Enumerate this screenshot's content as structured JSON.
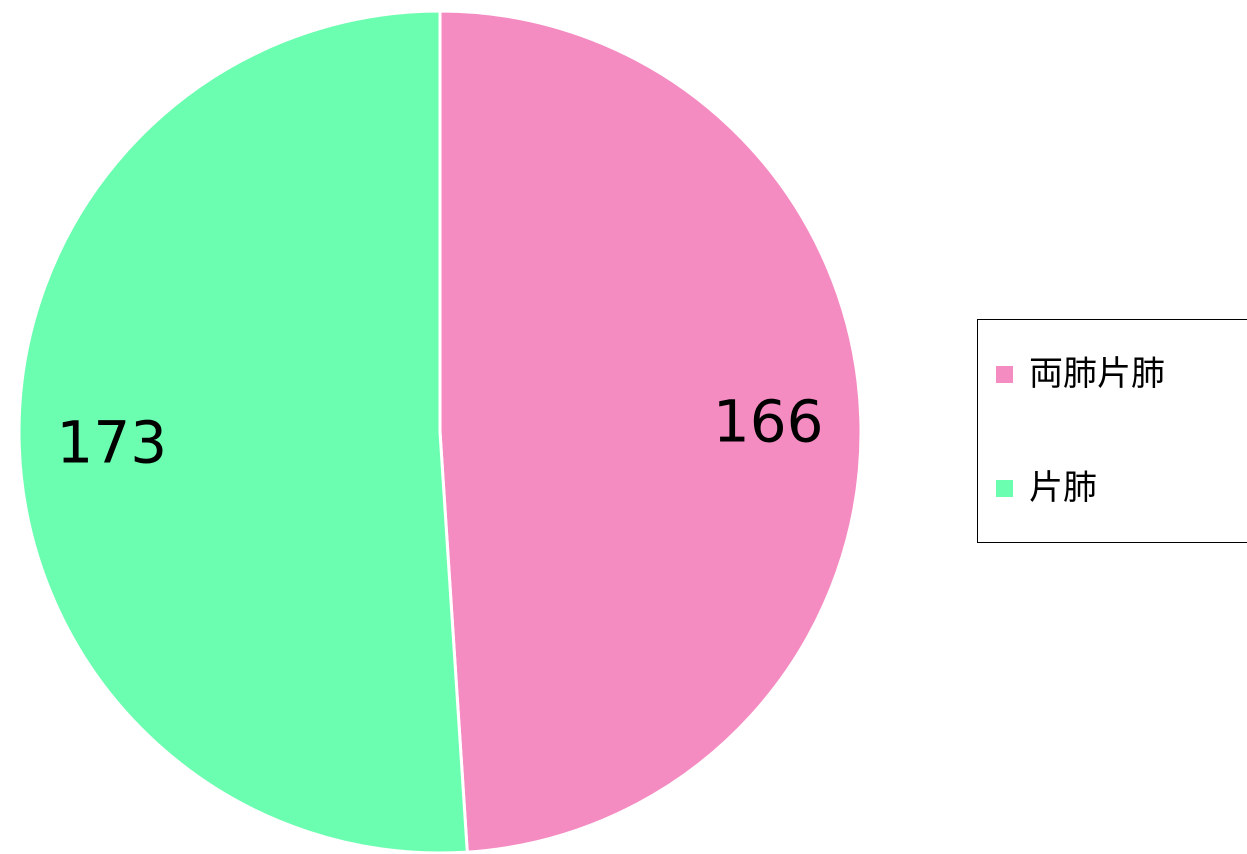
{
  "chart_data": {
    "type": "pie",
    "title": "",
    "start_angle_deg": 0,
    "direction": "clockwise",
    "slices": [
      {
        "label": "両肺片肺",
        "value": 166,
        "data_label": "166",
        "color": "#f48cc2"
      },
      {
        "label": "片肺",
        "value": 173,
        "data_label": "173",
        "color": "#6cfeb0"
      }
    ],
    "legend": {
      "position": "right",
      "entries": [
        "両肺片肺",
        "片肺"
      ]
    }
  },
  "colors": {
    "slice_border": "#ffffff",
    "background": "#ffffff"
  }
}
